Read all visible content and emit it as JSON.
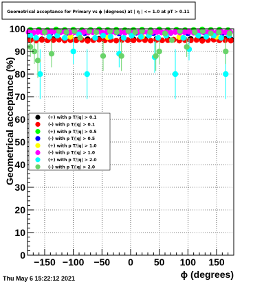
{
  "chart_data": {
    "type": "scatter",
    "title": "Geometrical acceptance for Primary vs ϕ (degrees) at | η | <= 1.0 at pT > 0.11",
    "xlabel": "ϕ (degrees)",
    "ylabel": "Geometrical acceptance (%)",
    "xlim": [
      -180,
      180
    ],
    "ylim": [
      0,
      100
    ],
    "xticks": [
      -150,
      -100,
      -50,
      0,
      50,
      100,
      150
    ],
    "yticks": [
      0,
      10,
      20,
      30,
      40,
      50,
      60,
      70,
      80,
      90,
      100
    ],
    "grid": true,
    "legend_position": "middle-left",
    "series": [
      {
        "name": "(+) with p T/|q| > 0.1",
        "color": "#000000",
        "x": [
          -175,
          -155,
          -135,
          -115,
          -95,
          -75,
          -55,
          -35,
          -15,
          5,
          25,
          45,
          65,
          85,
          105,
          125,
          145,
          165,
          175
        ],
        "y": [
          95.5,
          95.3,
          95.4,
          95.5,
          95.2,
          95.4,
          95.6,
          95.3,
          95.5,
          95.4,
          95.3,
          95.5,
          95.4,
          95.2,
          95.5,
          95.3,
          95.4,
          95.5,
          95.3
        ]
      },
      {
        "name": "(-) with p T/|q| > 0.1",
        "color": "#ff0000",
        "x": [
          -175,
          -165,
          -155,
          -145,
          -135,
          -125,
          -115,
          -105,
          -95,
          -85,
          -75,
          -65,
          -55,
          -45,
          -35,
          -25,
          -15,
          -5,
          5,
          15,
          25,
          35,
          45,
          55,
          65,
          75,
          85,
          95,
          105,
          115,
          125,
          135,
          145,
          155,
          165,
          175
        ],
        "y": [
          95,
          94.8,
          95.1,
          94.9,
          95,
          95.2,
          94.8,
          95,
          94.9,
          95.1,
          94.7,
          95,
          95.2,
          94.9,
          95,
          94.8,
          95.1,
          95,
          94.9,
          95.2,
          95,
          94.8,
          95.1,
          94.9,
          95,
          95.2,
          94.8,
          95,
          94.9,
          95.1,
          94.7,
          95,
          95.2,
          94.9,
          95,
          94.8
        ]
      },
      {
        "name": "(+) with p T/|q| > 0.5",
        "color": "#00ff00",
        "x": [
          -175,
          -160,
          -145,
          -130,
          -115,
          -100,
          -85,
          -70,
          -55,
          -40,
          -25,
          -10,
          5,
          20,
          35,
          50,
          65,
          80,
          95,
          110,
          125,
          140,
          155,
          170
        ],
        "y": [
          99.5,
          99.6,
          99.4,
          99.7,
          99.5,
          99.6,
          99.4,
          99.5,
          99.7,
          99.5,
          99.6,
          99.4,
          99.5,
          99.6,
          99.4,
          99.7,
          99.5,
          99.6,
          99.4,
          99.5,
          99.7,
          99.5,
          99.6,
          99.4
        ]
      },
      {
        "name": "(-) with p T/|q| > 0.5",
        "color": "#0000ff",
        "x": [
          -170,
          -140,
          -110,
          -80,
          -50,
          -20,
          10,
          40,
          70,
          100,
          130,
          160
        ],
        "y": [
          98.2,
          98,
          98.3,
          98.1,
          98.2,
          98,
          98.3,
          98.1,
          98.2,
          98,
          98.3,
          98.1
        ]
      },
      {
        "name": "(+) with p T/|q| > 1.0",
        "color": "#ffff00",
        "x": [
          -105,
          -40,
          20,
          85,
          150
        ],
        "y": [
          96.5,
          96.3,
          96.6,
          96.4,
          96.5
        ]
      },
      {
        "name": "(-) with p T/|q| > 1.0",
        "color": "#ff00ff",
        "x": [
          -178,
          -170,
          -162,
          -154,
          -146,
          -138,
          -130,
          -122,
          -114,
          -106,
          -98,
          -90,
          -82,
          -74,
          -66,
          -58,
          -50,
          -42,
          -34,
          -26,
          -18,
          -10,
          -2,
          6,
          14,
          22,
          30,
          38,
          46,
          54,
          62,
          70,
          78,
          86,
          94,
          102,
          110,
          118,
          126,
          134,
          142,
          150,
          158,
          166,
          174
        ],
        "y": [
          98.5,
          98.3,
          98.6,
          98.4,
          98.5,
          98.7,
          98.3,
          98.5,
          98.6,
          98.4,
          98.5,
          98.3,
          98.6,
          98.4,
          98.5,
          98.7,
          98.3,
          98.5,
          98.6,
          98.4,
          98.5,
          98.3,
          98.6,
          98.4,
          98.5,
          98.7,
          98.3,
          98.5,
          98.6,
          98.4,
          98.5,
          98.3,
          98.6,
          98.4,
          98.5,
          98.7,
          98.3,
          98.5,
          98.6,
          98.4,
          98.5,
          98.3,
          98.6,
          98.4,
          98.5
        ]
      },
      {
        "name": "(+) with p T/|q| > 2.0",
        "color": "#00ffff",
        "x": [
          -175,
          -165,
          -158,
          -142,
          -128,
          -115,
          -100,
          -90,
          -76,
          -62,
          -48,
          -35,
          -20,
          -12,
          2,
          18,
          32,
          42,
          48,
          62,
          78,
          92,
          102,
          118,
          132,
          145,
          158,
          166,
          172
        ],
        "y": [
          97,
          96,
          80,
          96.5,
          97,
          96,
          90,
          97.5,
          80,
          96,
          97,
          96.5,
          89,
          96,
          97,
          96.5,
          97,
          87.5,
          96,
          97,
          80,
          96,
          91,
          97,
          96.5,
          97,
          96,
          80,
          97
        ]
      },
      {
        "name": "(-) with p T/|q| > 2.0",
        "color": "#6ad36a",
        "x": [
          -175,
          -168,
          -162,
          -150,
          -138,
          -125,
          -112,
          -98,
          -88,
          -72,
          -60,
          -48,
          -36,
          -24,
          -16,
          -4,
          8,
          20,
          34,
          44,
          50,
          60,
          72,
          86,
          98,
          112,
          126,
          140,
          154,
          166,
          173
        ],
        "y": [
          92,
          90,
          86,
          98.5,
          89,
          99,
          98.5,
          99,
          96,
          99,
          98.5,
          88,
          99,
          98.5,
          88,
          99,
          98.5,
          99,
          98.5,
          88,
          90,
          98,
          95,
          99,
          92,
          98.5,
          99,
          98,
          98.5,
          90,
          98
        ]
      }
    ]
  },
  "footer": {
    "timestamp": "Thu May  6 15:22:12 2021"
  }
}
